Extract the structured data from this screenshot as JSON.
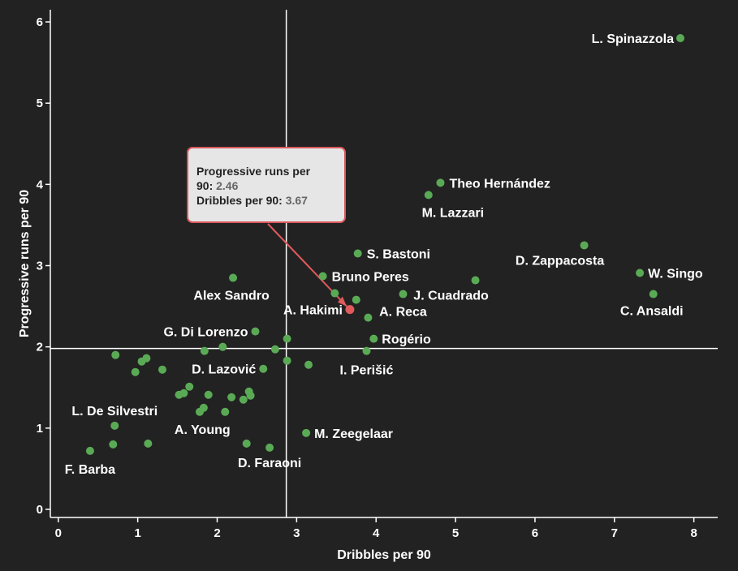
{
  "chart_data": {
    "type": "scatter",
    "xlabel": "Dribbles per 90",
    "ylabel": "Progressive runs per 90",
    "xlim": [
      -0.1,
      8.3
    ],
    "ylim": [
      -0.1,
      6.15
    ],
    "x_ticks": [
      "0",
      "1",
      "2",
      "3",
      "4",
      "5",
      "6",
      "7",
      "8"
    ],
    "y_ticks": [
      "0",
      "1",
      "2",
      "3",
      "4",
      "5",
      "6"
    ],
    "reference_lines": {
      "x": 2.87,
      "y": 1.98
    },
    "colors": {
      "point": "#5aaa55",
      "highlight": "#e05a5c",
      "lines": "#ffffff",
      "background": "#222222"
    },
    "points": [
      {
        "x": 7.83,
        "y": 5.8,
        "label": "L. Spinazzola"
      },
      {
        "x": 4.81,
        "y": 4.02,
        "label": "Theo Hernández"
      },
      {
        "x": 4.66,
        "y": 3.87,
        "label": "M. Lazzari"
      },
      {
        "x": 6.62,
        "y": 3.25,
        "label": "D. Zappacosta"
      },
      {
        "x": 7.32,
        "y": 2.91,
        "label": "W. Singo"
      },
      {
        "x": 7.49,
        "y": 2.65,
        "label": "C. Ansaldi"
      },
      {
        "x": 3.77,
        "y": 3.15,
        "label": "S. Bastoni"
      },
      {
        "x": 3.33,
        "y": 2.87,
        "label": "Bruno Peres"
      },
      {
        "x": 5.25,
        "y": 2.82,
        "label": "J. Cuadrado"
      },
      {
        "x": 2.2,
        "y": 2.85,
        "label": "Alex Sandro"
      },
      {
        "x": 3.67,
        "y": 2.46,
        "label": "A. Hakimi",
        "highlight": true
      },
      {
        "x": 4.34,
        "y": 2.65,
        "label": "A. Reca"
      },
      {
        "x": 3.48,
        "y": 2.66
      },
      {
        "x": 3.75,
        "y": 2.58
      },
      {
        "x": 3.9,
        "y": 2.36
      },
      {
        "x": 2.48,
        "y": 2.19,
        "label": "G. Di Lorenzo"
      },
      {
        "x": 3.97,
        "y": 2.1,
        "label": "Rogério"
      },
      {
        "x": 3.88,
        "y": 1.95,
        "label": "I. Perišić"
      },
      {
        "x": 2.58,
        "y": 1.73,
        "label": "D. Lazović"
      },
      {
        "x": 0.72,
        "y": 1.9
      },
      {
        "x": 1.05,
        "y": 1.82
      },
      {
        "x": 1.11,
        "y": 1.86
      },
      {
        "x": 0.97,
        "y": 1.69
      },
      {
        "x": 1.31,
        "y": 1.72
      },
      {
        "x": 1.84,
        "y": 1.95
      },
      {
        "x": 2.07,
        "y": 2.0
      },
      {
        "x": 2.73,
        "y": 1.97
      },
      {
        "x": 2.88,
        "y": 2.1
      },
      {
        "x": 2.88,
        "y": 1.83
      },
      {
        "x": 3.15,
        "y": 1.78
      },
      {
        "x": 1.65,
        "y": 1.51
      },
      {
        "x": 1.52,
        "y": 1.41
      },
      {
        "x": 1.58,
        "y": 1.43
      },
      {
        "x": 1.89,
        "y": 1.41
      },
      {
        "x": 2.18,
        "y": 1.38
      },
      {
        "x": 2.33,
        "y": 1.35
      },
      {
        "x": 2.4,
        "y": 1.45
      },
      {
        "x": 2.42,
        "y": 1.4
      },
      {
        "x": 1.83,
        "y": 1.25
      },
      {
        "x": 1.78,
        "y": 1.2
      },
      {
        "x": 2.1,
        "y": 1.2,
        "label": "A. Young"
      },
      {
        "x": 0.71,
        "y": 1.03,
        "label": "L. De Silvestri"
      },
      {
        "x": 3.12,
        "y": 0.94,
        "label": "M. Zeegelaar"
      },
      {
        "x": 0.69,
        "y": 0.8
      },
      {
        "x": 1.13,
        "y": 0.81
      },
      {
        "x": 0.4,
        "y": 0.72,
        "label": "F. Barba"
      },
      {
        "x": 2.37,
        "y": 0.81
      },
      {
        "x": 2.66,
        "y": 0.76,
        "label": "D. Faraoni"
      }
    ],
    "tooltip": {
      "line1": "Progressive runs per",
      "line2_prefix": "90: ",
      "y_value": "2.46",
      "x_label": "Dribbles per 90:",
      "x_value": "3.67"
    }
  }
}
